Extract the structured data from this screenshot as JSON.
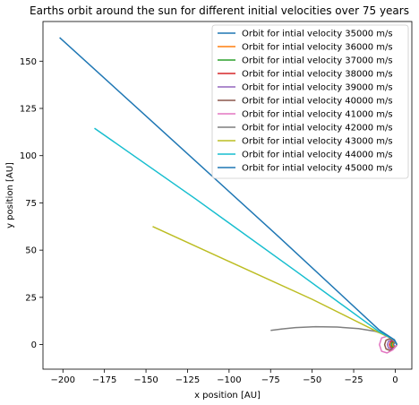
{
  "chart_data": {
    "type": "line",
    "title": "Earths orbit around the sun for different initial velocities over 75 years",
    "xlabel": "x position [AU]",
    "ylabel": "y position [AU]",
    "xlim": [
      -212,
      10
    ],
    "ylim": [
      -13,
      171
    ],
    "xticks": [
      -200,
      -175,
      -150,
      -125,
      -100,
      -75,
      -50,
      -25,
      0
    ],
    "yticks": [
      0,
      25,
      50,
      75,
      100,
      125,
      150
    ],
    "grid": false,
    "legend": "top-right",
    "series": [
      {
        "name": "Orbit for intial velocity 35000 m/s",
        "color": "#1f77b4",
        "x": [
          1.0,
          0.6,
          -0.1,
          -0.7,
          -1.0,
          -0.8,
          -0.2,
          0.5,
          1.0
        ],
        "y": [
          0.0,
          0.8,
          1.0,
          0.7,
          0.0,
          -0.6,
          -1.0,
          -0.8,
          0.0
        ]
      },
      {
        "name": "Orbit for intial velocity 36000 m/s",
        "color": "#ff7f0e",
        "x": [
          1.0,
          0.4,
          -0.6,
          -1.3,
          -1.6,
          -1.3,
          -0.6,
          0.3,
          1.0
        ],
        "y": [
          0.0,
          0.9,
          1.2,
          0.9,
          0.0,
          -0.9,
          -1.2,
          -0.9,
          0.0
        ]
      },
      {
        "name": "Orbit for intial velocity 37000 m/s",
        "color": "#2ca02c",
        "x": [
          1.0,
          0.2,
          -1.1,
          -2.0,
          -2.4,
          -2.0,
          -1.1,
          0.2,
          1.0
        ],
        "y": [
          0.0,
          1.1,
          1.5,
          1.1,
          0.0,
          -1.1,
          -1.5,
          -1.1,
          0.0
        ]
      },
      {
        "name": "Orbit for intial velocity 38000 m/s",
        "color": "#d62728",
        "x": [
          1.0,
          0.0,
          -1.6,
          -2.9,
          -3.4,
          -2.9,
          -1.6,
          0.0,
          1.0
        ],
        "y": [
          0.0,
          1.3,
          1.9,
          1.4,
          0.0,
          -1.4,
          -1.9,
          -1.3,
          0.0
        ]
      },
      {
        "name": "Orbit for intial velocity 39000 m/s",
        "color": "#9467bd",
        "x": [
          1.0,
          -0.3,
          -2.3,
          -4.0,
          -4.7,
          -4.0,
          -2.3,
          -0.3,
          1.0
        ],
        "y": [
          0.0,
          1.6,
          2.4,
          1.8,
          0.0,
          -1.8,
          -2.4,
          -1.6,
          0.0
        ]
      },
      {
        "name": "Orbit for intial velocity 40000 m/s",
        "color": "#8c564b",
        "x": [
          1.0,
          -0.7,
          -3.3,
          -5.5,
          -6.4,
          -5.5,
          -3.3,
          -0.7,
          1.0
        ],
        "y": [
          0.0,
          2.0,
          3.1,
          2.3,
          0.0,
          -2.3,
          -3.1,
          -2.0,
          0.0
        ]
      },
      {
        "name": "Orbit for intial velocity 41000 m/s",
        "color": "#e377c2",
        "x": [
          1.0,
          -1.5,
          -5.0,
          -8.2,
          -9.5,
          -8.2,
          -5.0,
          -1.5,
          1.0
        ],
        "y": [
          0.0,
          2.8,
          4.4,
          3.5,
          0.0,
          -3.5,
          -4.4,
          -2.8,
          0.0
        ]
      },
      {
        "name": "Orbit for intial velocity 42000 m/s",
        "color": "#7f7f7f",
        "x": [
          1.0,
          -1.0,
          -5.0,
          -12.0,
          -22.0,
          -35.0,
          -48.0,
          -60.0,
          -68.0,
          -75.0
        ],
        "y": [
          0.0,
          2.5,
          5.0,
          7.0,
          8.5,
          9.3,
          9.5,
          9.0,
          8.3,
          7.5
        ]
      },
      {
        "name": "Orbit for intial velocity 43000 m/s",
        "color": "#bcbd22",
        "x": [
          1.0,
          -0.5,
          -10.0,
          -50.0,
          -100.0,
          -146.0
        ],
        "y": [
          0.0,
          2.5,
          6.5,
          24.0,
          44.0,
          62.5
        ]
      },
      {
        "name": "Orbit for intial velocity 44000 m/s",
        "color": "#17becf",
        "x": [
          1.0,
          -0.5,
          -10.0,
          -60.0,
          -120.0,
          -181.0
        ],
        "y": [
          0.0,
          2.5,
          7.0,
          39.0,
          77.0,
          114.5
        ]
      },
      {
        "name": "Orbit for intial velocity 45000 m/s",
        "color": "#1f77b4",
        "x": [
          1.0,
          -0.5,
          -10.0,
          -70.0,
          -140.0,
          -202.0
        ],
        "y": [
          0.0,
          2.5,
          8.0,
          57.0,
          113.0,
          162.5
        ]
      }
    ]
  }
}
